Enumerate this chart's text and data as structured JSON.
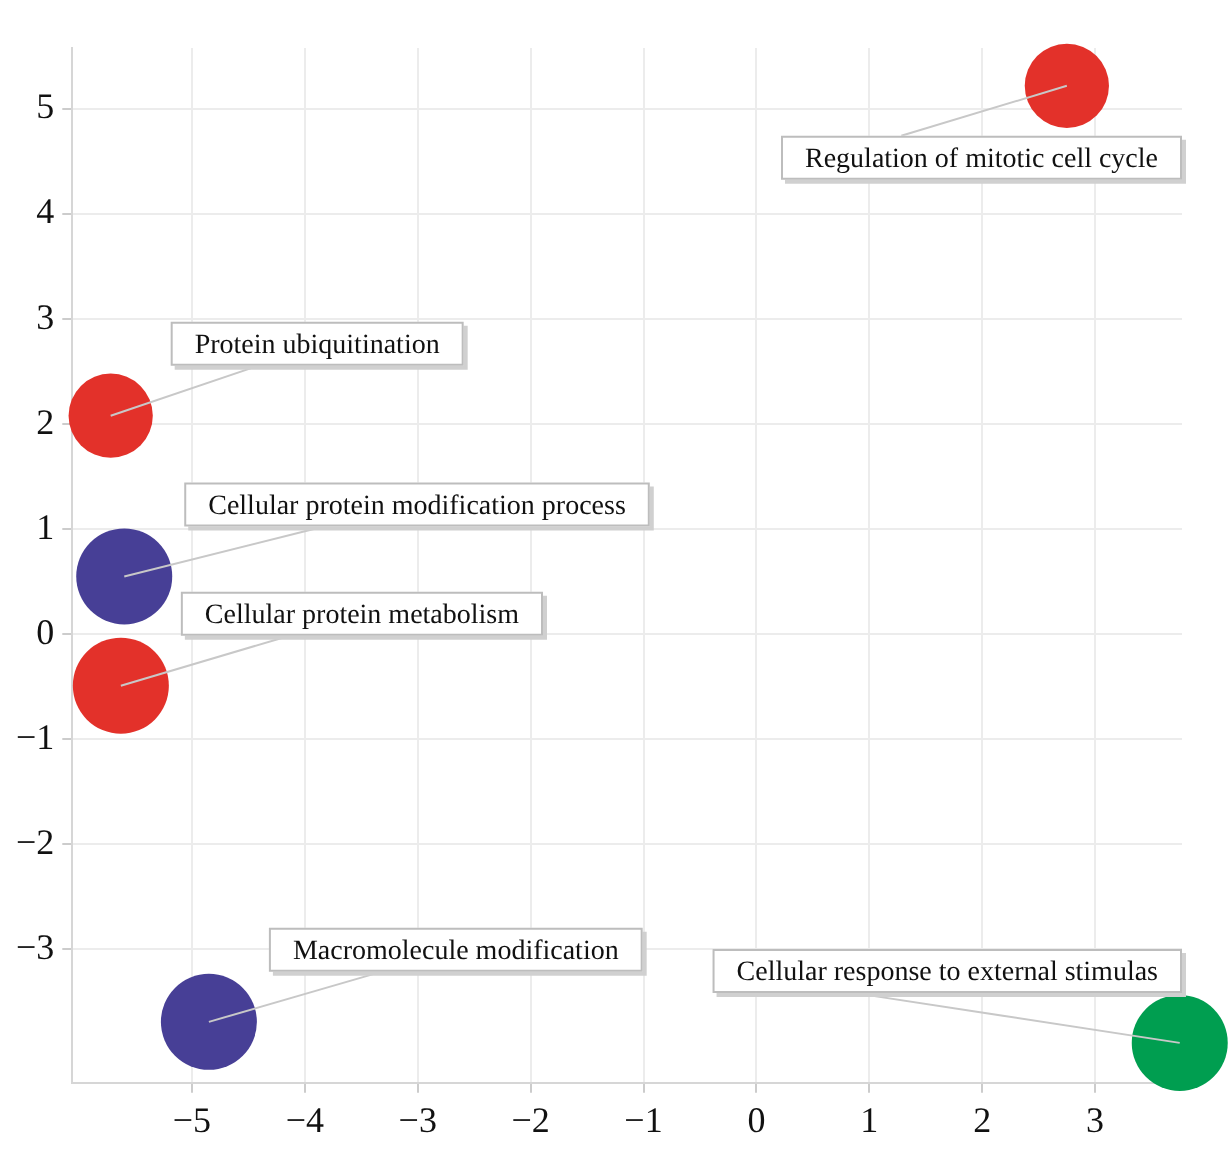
{
  "chart_data": {
    "type": "bubble",
    "x": [
      2.75,
      -5.72,
      -5.6,
      -5.63,
      -4.85,
      3.75
    ],
    "values": [
      5.22,
      2.08,
      0.55,
      -0.49,
      -3.69,
      -3.89
    ],
    "sizes": [
      0.77,
      0.77,
      1,
      1,
      1,
      1
    ],
    "colors": [
      "#e3312a",
      "#e3312a",
      "#473f96",
      "#e3312a",
      "#473f96",
      "#009e50"
    ],
    "value_labels": [
      "Regulation of mitotic cell cycle",
      "Protein ubiquitination",
      "Cellular protein modification process",
      "Cellular protein metabolism",
      "Macromolecule modification",
      "Cellular response to external stimulas"
    ],
    "xlim": [
      -6.06,
      3.77
    ],
    "xticks": [
      {
        "value": -5,
        "label": "−5"
      },
      {
        "value": -4,
        "label": "−4"
      },
      {
        "value": -3,
        "label": "−3"
      },
      {
        "value": -2,
        "label": "−2"
      },
      {
        "value": -1,
        "label": "−1"
      },
      0,
      1,
      2,
      3
    ],
    "ylim": [
      -4.27,
      5.58
    ],
    "yticks": [
      {
        "value": -3,
        "label": "−3"
      },
      {
        "value": -2,
        "label": "−2"
      },
      {
        "value": -1,
        "label": "−1"
      },
      0,
      1,
      2,
      3,
      4,
      5
    ],
    "grid": true,
    "legend": false
  }
}
